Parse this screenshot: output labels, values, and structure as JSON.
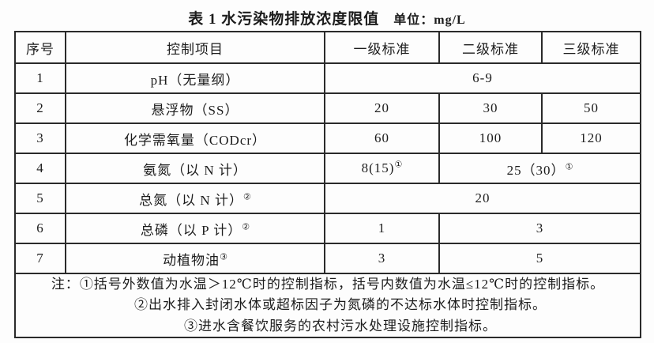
{
  "page": {
    "title": "表 1 水污染物排放浓度限值",
    "unit_label": "单位：mg/L"
  },
  "colors": {
    "border": "#2a2a2a",
    "text": "#1c1c1c",
    "background": "#fdfdfd"
  },
  "table": {
    "headers": {
      "no": "序号",
      "item": "控制项目",
      "l1": "一级标准",
      "l2": "二级标准",
      "l3": "三级标准"
    },
    "rows": [
      {
        "no": "1",
        "item": "pH（无量纲）",
        "item_sup": "",
        "span3": {
          "text": "6-9",
          "sup": ""
        }
      },
      {
        "no": "2",
        "item": "悬浮物（SS）",
        "item_sup": "",
        "c1": {
          "text": "20",
          "sup": ""
        },
        "c2": {
          "text": "30",
          "sup": ""
        },
        "c3": {
          "text": "50",
          "sup": ""
        }
      },
      {
        "no": "3",
        "item": "化学需氧量（CODcr）",
        "item_sup": "",
        "c1": {
          "text": "60",
          "sup": ""
        },
        "c2": {
          "text": "100",
          "sup": ""
        },
        "c3": {
          "text": "120",
          "sup": ""
        }
      },
      {
        "no": "4",
        "item": "氨氮（以 N 计）",
        "item_sup": "",
        "c1": {
          "text": "8(15)",
          "sup": "①"
        },
        "span2": {
          "text": "25（30）",
          "sup": "①"
        }
      },
      {
        "no": "5",
        "item": "总氮（以 N 计）",
        "item_sup": "②",
        "span3": {
          "text": "20",
          "sup": ""
        }
      },
      {
        "no": "6",
        "item": "总磷（以 P 计）",
        "item_sup": "②",
        "c1": {
          "text": "1",
          "sup": ""
        },
        "span2": {
          "text": "3",
          "sup": ""
        }
      },
      {
        "no": "7",
        "item": "动植物油",
        "item_sup": "③",
        "c1": {
          "text": "3",
          "sup": ""
        },
        "span2": {
          "text": "5",
          "sup": ""
        }
      }
    ],
    "notes": {
      "prefix": "注：",
      "lines": [
        "①括号外数值为水温＞12℃时的控制指标，括号内数值为水温≤12℃时的控制指标。",
        "②出水排入封闭水体或超标因子为氮磷的不达标水体时控制指标。",
        "③进水含餐饮服务的农村污水处理设施控制指标。"
      ]
    }
  }
}
